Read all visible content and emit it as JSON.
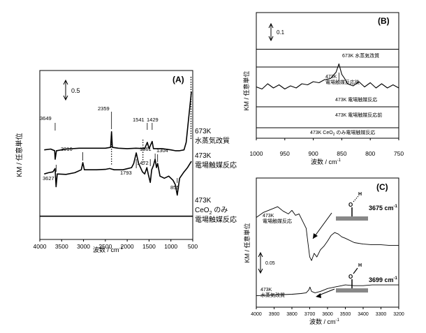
{
  "chart_data": [
    {
      "panel": "A",
      "type": "line",
      "panel_label": "(A)",
      "xlabel": "波数 / cm⁻¹",
      "ylabel": "KM / 任意単位",
      "xlim": [
        4000,
        500
      ],
      "x_ticks": [
        4000,
        3500,
        3000,
        2500,
        2000,
        1500,
        1000,
        500
      ],
      "scale_bar": "0.5",
      "series": [
        {
          "name": "673K\n水蒸気改質",
          "points": [
            [
              3900,
              0.52
            ],
            [
              3750,
              0.54
            ],
            [
              3660,
              0.5
            ],
            [
              3649,
              0.3
            ],
            [
              3620,
              0.5
            ],
            [
              3400,
              0.54
            ],
            [
              3100,
              0.56
            ],
            [
              2800,
              0.56
            ],
            [
              2500,
              0.56
            ],
            [
              2380,
              0.58
            ],
            [
              2359,
              0.95
            ],
            [
              2340,
              0.58
            ],
            [
              2200,
              0.56
            ],
            [
              2000,
              0.55
            ],
            [
              1800,
              0.56
            ],
            [
              1600,
              0.55
            ],
            [
              1541,
              0.7
            ],
            [
              1500,
              0.55
            ],
            [
              1429,
              0.72
            ],
            [
              1400,
              0.55
            ],
            [
              1200,
              0.55
            ],
            [
              1000,
              0.52
            ],
            [
              900,
              0.5
            ],
            [
              800,
              0.5
            ],
            [
              700,
              0.52
            ],
            [
              650,
              0.7
            ],
            [
              600,
              1.2
            ],
            [
              560,
              1.6
            ],
            [
              530,
              1.9
            ]
          ]
        },
        {
          "name": "473K\n電場触媒反応",
          "points": [
            [
              3900,
              -0.05
            ],
            [
              3800,
              -0.02
            ],
            [
              3700,
              0.0
            ],
            [
              3650,
              0.08
            ],
            [
              3627,
              -0.35
            ],
            [
              3600,
              -0.05
            ],
            [
              3400,
              -0.06
            ],
            [
              3200,
              -0.02
            ],
            [
              3050,
              0.05
            ],
            [
              3016,
              0.22
            ],
            [
              2980,
              0.05
            ],
            [
              2700,
              0.05
            ],
            [
              2500,
              0.06
            ],
            [
              2400,
              0.08
            ],
            [
              2300,
              0.05
            ],
            [
              2100,
              0.05
            ],
            [
              1900,
              0.1
            ],
            [
              1850,
              0.2
            ],
            [
              1793,
              0.45
            ],
            [
              1740,
              0.2
            ],
            [
              1650,
              0.0
            ],
            [
              1600,
              -0.05
            ],
            [
              1550,
              0.1
            ],
            [
              1520,
              -0.05
            ],
            [
              1472,
              -0.25
            ],
            [
              1440,
              0.05
            ],
            [
              1400,
              0.15
            ],
            [
              1361,
              0.3
            ],
            [
              1330,
              0.1
            ],
            [
              1304,
              0.2
            ],
            [
              1250,
              -0.1
            ],
            [
              1150,
              -0.15
            ],
            [
              1050,
              -0.1
            ],
            [
              950,
              -0.2
            ],
            [
              900,
              -0.3
            ],
            [
              855,
              -0.55
            ],
            [
              800,
              -0.15
            ],
            [
              700,
              0.0
            ],
            [
              620,
              0.1
            ],
            [
              560,
              0.2
            ],
            [
              530,
              0.25
            ]
          ]
        },
        {
          "name": "473K\nCeO₂ のみ\n電場触媒反応",
          "points": [
            [
              4000,
              -1.05
            ],
            [
              3000,
              -1.05
            ],
            [
              2000,
              -1.05
            ],
            [
              1000,
              -1.05
            ],
            [
              500,
              -1.05
            ]
          ]
        }
      ],
      "annotations": [
        "3649",
        "2359",
        "1541",
        "1429",
        "3016",
        "1361",
        "1304",
        "1793",
        "1472",
        "3627",
        "855"
      ]
    },
    {
      "panel": "B",
      "type": "line",
      "panel_label": "(B)",
      "xlabel": "波数 / cm⁻¹",
      "ylabel": "KM / 任意単位",
      "xlim": [
        1000,
        750
      ],
      "x_ticks": [
        1000,
        950,
        900,
        850,
        800,
        750
      ],
      "scale_bar": "0.1",
      "series": [
        {
          "name": "673K 水蒸気改質",
          "points": [
            [
              1000,
              0.0
            ],
            [
              750,
              0.0
            ]
          ]
        },
        {
          "name": "473K\n電場触媒反応後",
          "points": [
            [
              1000,
              -0.36
            ],
            [
              990,
              -0.38
            ],
            [
              980,
              -0.33
            ],
            [
              970,
              -0.37
            ],
            [
              960,
              -0.34
            ],
            [
              950,
              -0.38
            ],
            [
              940,
              -0.35
            ],
            [
              930,
              -0.37
            ],
            [
              920,
              -0.33
            ],
            [
              910,
              -0.34
            ],
            [
              900,
              -0.31
            ],
            [
              890,
              -0.32
            ],
            [
              880,
              -0.29
            ],
            [
              870,
              -0.28
            ],
            [
              860,
              -0.22
            ],
            [
              855,
              -0.14
            ],
            [
              850,
              -0.24
            ],
            [
              845,
              -0.28
            ],
            [
              840,
              -0.33
            ],
            [
              830,
              -0.35
            ],
            [
              820,
              -0.31
            ],
            [
              810,
              -0.36
            ],
            [
              800,
              -0.32
            ],
            [
              790,
              -0.37
            ],
            [
              780,
              -0.33
            ],
            [
              770,
              -0.37
            ],
            [
              760,
              -0.34
            ],
            [
              750,
              -0.37
            ]
          ]
        },
        {
          "name": "473K 電場触媒反応",
          "points": [
            [
              1000,
              -0.17
            ],
            [
              750,
              -0.17
            ]
          ]
        },
        {
          "name": "473K 電場触媒反応前",
          "points": [
            [
              1000,
              -0.55
            ],
            [
              750,
              -0.55
            ]
          ]
        },
        {
          "name": "473K CeO₂ のみ電場触媒反応",
          "points": [
            [
              1000,
              -0.75
            ],
            [
              750,
              -0.75
            ]
          ]
        }
      ]
    },
    {
      "panel": "C",
      "type": "line",
      "panel_label": "(C)",
      "xlabel": "波数 / cm⁻¹",
      "ylabel": "KM / 任意単位",
      "xlim": [
        4000,
        3200
      ],
      "x_ticks": [
        4000,
        3900,
        3800,
        3700,
        3600,
        3500,
        3400,
        3300,
        3200
      ],
      "scale_bar": "0.05",
      "series": [
        {
          "name": "473K\n電場触媒反応",
          "points": [
            [
              4000,
              0.085
            ],
            [
              3960,
              0.092
            ],
            [
              3920,
              0.096
            ],
            [
              3880,
              0.1
            ],
            [
              3850,
              0.094
            ],
            [
              3820,
              0.09
            ],
            [
              3800,
              0.095
            ],
            [
              3780,
              0.088
            ],
            [
              3760,
              0.09
            ],
            [
              3740,
              0.08
            ],
            [
              3720,
              0.07
            ],
            [
              3710,
              0.05
            ],
            [
              3700,
              0.03
            ],
            [
              3690,
              0.025
            ],
            [
              3675,
              0.035
            ],
            [
              3660,
              0.03
            ],
            [
              3640,
              0.04
            ],
            [
              3620,
              0.045
            ],
            [
              3600,
              0.052
            ],
            [
              3580,
              0.06
            ],
            [
              3560,
              0.064
            ],
            [
              3540,
              0.062
            ],
            [
              3520,
              0.058
            ],
            [
              3500,
              0.056
            ],
            [
              3450,
              0.05
            ],
            [
              3400,
              0.048
            ],
            [
              3350,
              0.047
            ],
            [
              3300,
              0.047
            ],
            [
              3250,
              0.046
            ],
            [
              3200,
              0.046
            ]
          ],
          "label_point": "3675 cm⁻¹"
        },
        {
          "name": "473K\n水蒸気改質",
          "points": [
            [
              4000,
              -0.024
            ],
            [
              3900,
              -0.023
            ],
            [
              3800,
              -0.022
            ],
            [
              3750,
              -0.021
            ],
            [
              3720,
              -0.02
            ],
            [
              3705,
              -0.016
            ],
            [
              3699,
              -0.012
            ],
            [
              3690,
              -0.018
            ],
            [
              3670,
              -0.02
            ],
            [
              3640,
              -0.018
            ],
            [
              3600,
              -0.014
            ],
            [
              3560,
              -0.012
            ],
            [
              3520,
              -0.01
            ],
            [
              3500,
              -0.009
            ],
            [
              3450,
              -0.01
            ],
            [
              3400,
              -0.01
            ],
            [
              3350,
              -0.009
            ],
            [
              3300,
              -0.009
            ],
            [
              3250,
              -0.009
            ],
            [
              3200,
              -0.009
            ]
          ],
          "label_point": "3699 cm⁻¹"
        }
      ]
    }
  ],
  "labels": {
    "A": {
      "panel": "(A)",
      "scale": "0.5",
      "xlabel_main": "波数 / cm",
      "xlabel_sup": "-1",
      "ylabel": "KM / 任意単位",
      "ticks": [
        "4000",
        "3500",
        "3000",
        "2500",
        "2000",
        "1500",
        "1000",
        "500"
      ],
      "legend_1_l1": "673K",
      "legend_1_l2": "水蒸気改質",
      "legend_2_l1": "473K",
      "legend_2_l2": "電場触媒反応",
      "legend_3_l1": "473K",
      "legend_3_l2a": "CeO",
      "legend_3_sub": "2",
      "legend_3_l2b": " のみ",
      "legend_3_l3": "電場触媒反応",
      "pk_3649": "3649",
      "pk_2359": "2359",
      "pk_1541": "1541",
      "pk_1429": "1429",
      "pk_3016": "3016",
      "pk_1361": "1361",
      "pk_1304": "1304",
      "pk_1793": "1793",
      "pk_1472": "1472",
      "pk_3627": "3627",
      "pk_855": "855"
    },
    "B": {
      "panel": "(B)",
      "scale": "0.1",
      "xlabel_main": "波数 / cm",
      "xlabel_sup": "-1",
      "ylabel": "KM / 任意単位",
      "ticks": [
        "1000",
        "950",
        "900",
        "850",
        "800",
        "750"
      ],
      "s1": "673K 水蒸気改質",
      "s2_l1": "473K",
      "s2_l2": "電場触媒反応後",
      "s3": "473K 電場触媒反応",
      "s4": "473K 電場触媒反応前",
      "s5a": "473K CeO",
      "s5_sub": "2",
      "s5b": " のみ電場触媒反応"
    },
    "C": {
      "panel": "(C)",
      "scale": "0.05",
      "xlabel_main": "波数 / cm",
      "xlabel_sup": "-1",
      "ylabel": "KM / 任意単位",
      "ticks": [
        "4000",
        "3900",
        "3800",
        "3700",
        "3600",
        "3500",
        "3400",
        "3300",
        "3200"
      ],
      "s1_l1": "473K",
      "s1_l2": "電場触媒反応",
      "s2_l1": "473K",
      "s2_l2": "水蒸気改質",
      "m1_o": "O",
      "m1_h": "H",
      "m1_val": "3675 cm",
      "m1_sup": "-1",
      "m2_o": "O",
      "m2_h": "H",
      "m2_val": "3699 cm",
      "m2_sup": "-1"
    }
  }
}
